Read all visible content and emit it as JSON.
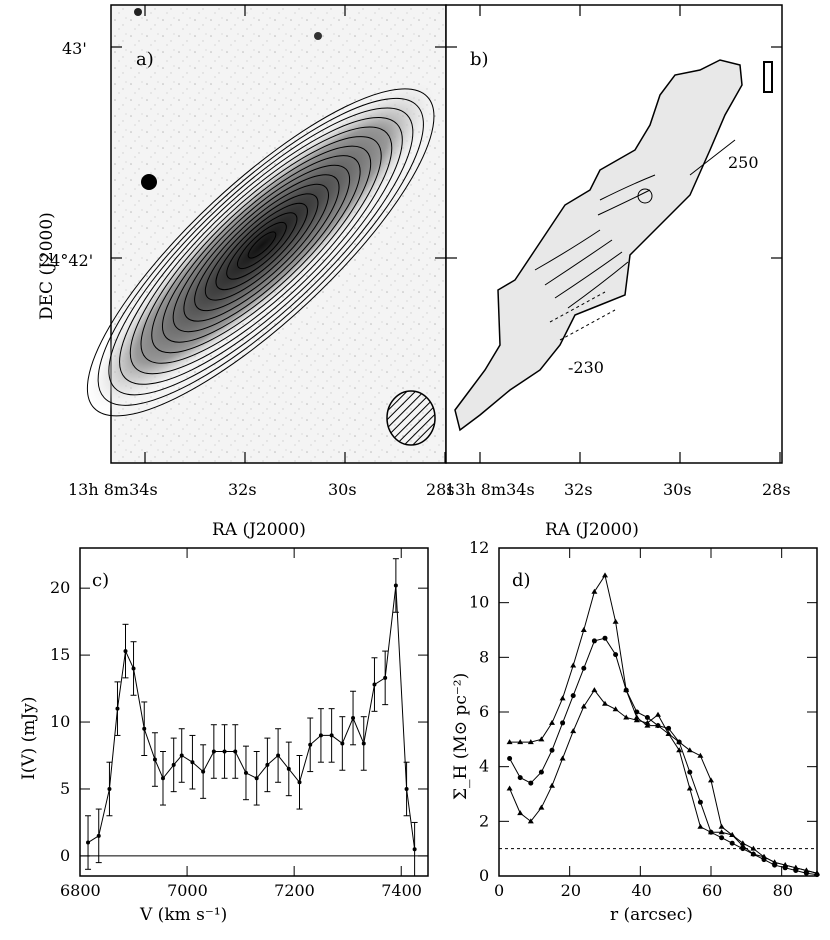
{
  "chart_data": [
    {
      "panel": "a)",
      "type": "image",
      "xlabel": "RA (J2000)",
      "ylabel": "DEC (J2000)",
      "xticks": [
        "13h 8m34s",
        "32s",
        "30s",
        "28s"
      ],
      "yticks": [
        "43'",
        "24°42'"
      ],
      "contours": "HI column density contours over optical image"
    },
    {
      "panel": "b)",
      "type": "image",
      "xlabel": "RA (J2000)",
      "xticks": [
        "13h 8m34s",
        "32s",
        "30s",
        "28s"
      ],
      "annotations": [
        "250",
        "-230"
      ],
      "contours": "velocity field"
    },
    {
      "panel": "c)",
      "type": "line",
      "xlabel": "V (km s⁻¹)",
      "ylabel": "I(V) (mJy)",
      "xlim": [
        6800,
        7450
      ],
      "ylim": [
        -1.5,
        23
      ],
      "xticks": [
        6800,
        7000,
        7200,
        7400
      ],
      "yticks": [
        0,
        5,
        10,
        15,
        20
      ],
      "x": [
        6815,
        6835,
        6855,
        6870,
        6885,
        6900,
        6920,
        6940,
        6955,
        6975,
        6990,
        7010,
        7030,
        7050,
        7070,
        7090,
        7110,
        7130,
        7150,
        7170,
        7190,
        7210,
        7230,
        7250,
        7270,
        7290,
        7310,
        7330,
        7350,
        7370,
        7390,
        7410,
        7425
      ],
      "values": [
        1,
        1.5,
        5,
        11,
        15.3,
        14,
        9.5,
        7.2,
        5.8,
        6.8,
        7.5,
        7,
        6.3,
        7.8,
        7.8,
        7.8,
        6.2,
        5.8,
        6.8,
        7.5,
        6.5,
        5.5,
        8.3,
        9,
        9,
        8.4,
        10.3,
        8.4,
        12.8,
        13.3,
        20.2,
        5,
        0.5
      ],
      "errors": 2
    },
    {
      "panel": "d)",
      "type": "line",
      "xlabel": "r (arcsec)",
      "ylabel": "Σ_H (M⊙ pc⁻²)",
      "xlim": [
        0,
        90
      ],
      "ylim": [
        0,
        12
      ],
      "xticks": [
        0,
        20,
        40,
        60,
        80
      ],
      "yticks": [
        0,
        2,
        4,
        6,
        8,
        10,
        12
      ],
      "threshold": 1,
      "series": [
        {
          "name": "triangle-top",
          "x": [
            3,
            6,
            9,
            12,
            15,
            18,
            21,
            24,
            27,
            30,
            33,
            36,
            39,
            42,
            45,
            48,
            51,
            54,
            57,
            60,
            63,
            66,
            69,
            72,
            75,
            78,
            81,
            84,
            87,
            90
          ],
          "values": [
            4.9,
            4.9,
            4.9,
            5,
            5.6,
            6.5,
            7.7,
            9,
            10.4,
            11,
            9.3,
            6.8,
            5.8,
            5.5,
            5.5,
            5.2,
            4.9,
            4.6,
            4.4,
            3.5,
            1.8,
            1.5,
            1.1,
            0.8,
            0.7,
            0.5,
            0.4,
            0.3,
            0.2,
            0.1
          ]
        },
        {
          "name": "dots",
          "x": [
            3,
            6,
            9,
            12,
            15,
            18,
            21,
            24,
            27,
            30,
            33,
            36,
            39,
            42,
            45,
            48,
            51,
            54,
            57,
            60,
            63,
            66,
            69,
            72,
            75,
            78,
            81,
            84,
            87,
            90
          ],
          "values": [
            4.3,
            3.6,
            3.4,
            3.8,
            4.6,
            5.6,
            6.6,
            7.6,
            8.6,
            8.7,
            8.1,
            6.8,
            6,
            5.8,
            5.5,
            5.4,
            4.9,
            3.8,
            2.7,
            1.6,
            1.4,
            1.2,
            1,
            0.8,
            0.6,
            0.4,
            0.3,
            0.2,
            0.1,
            0.05
          ]
        },
        {
          "name": "triangle-bottom",
          "x": [
            3,
            6,
            9,
            12,
            15,
            18,
            21,
            24,
            27,
            30,
            33,
            36,
            39,
            42,
            45,
            48,
            51,
            54,
            57,
            60,
            63,
            66,
            69,
            72,
            75,
            78,
            81,
            84,
            87,
            90
          ],
          "values": [
            3.2,
            2.3,
            2,
            2.5,
            3.3,
            4.3,
            5.3,
            6.2,
            6.8,
            6.3,
            6.1,
            5.8,
            5.7,
            5.6,
            5.9,
            5.2,
            4.6,
            3.2,
            1.8,
            1.6,
            1.6,
            1.5,
            1.2,
            1,
            0.7,
            0.5,
            0.4,
            0.3,
            0.2,
            0.1
          ]
        }
      ]
    }
  ]
}
